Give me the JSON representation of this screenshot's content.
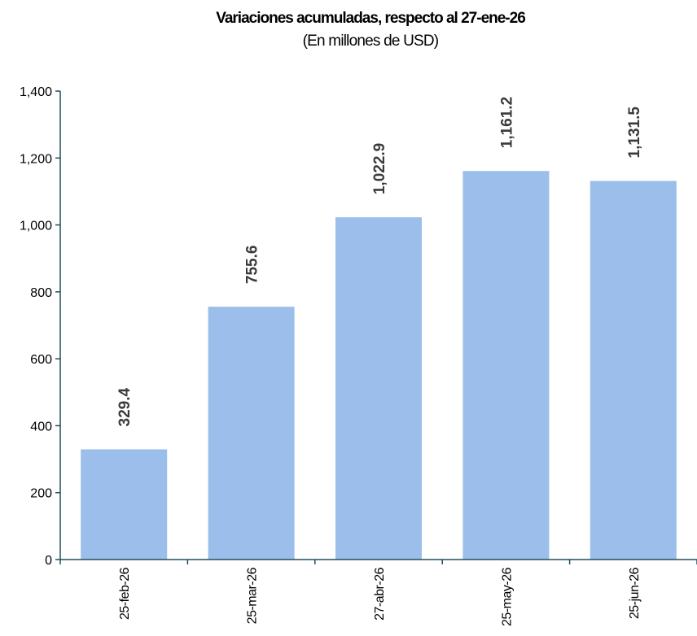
{
  "chart_data": {
    "type": "bar",
    "title": "Variaciones acumuladas, respecto al 27-ene-26",
    "subtitle": "(En millones de USD)",
    "categories": [
      "25-feb-26",
      "25-mar-26",
      "27-abr-26",
      "25-may-26",
      "25-jun-26"
    ],
    "values": [
      329.4,
      755.6,
      1022.9,
      1161.2,
      1131.5
    ],
    "value_labels": [
      "329.4",
      "755.6",
      "1,022.9",
      "1,161.2",
      "1,131.5"
    ],
    "yticks": [
      0,
      200,
      400,
      600,
      800,
      1000,
      1200,
      1400
    ],
    "ytick_labels": [
      "0",
      "200",
      "400",
      "600",
      "800",
      "1,000",
      "1,200",
      "1,400"
    ],
    "ylim": [
      0,
      1400
    ],
    "xlabel": "",
    "ylabel": "",
    "grid": false,
    "bar_color": "#9bbfea",
    "axis_color": "#1f4e5f"
  }
}
